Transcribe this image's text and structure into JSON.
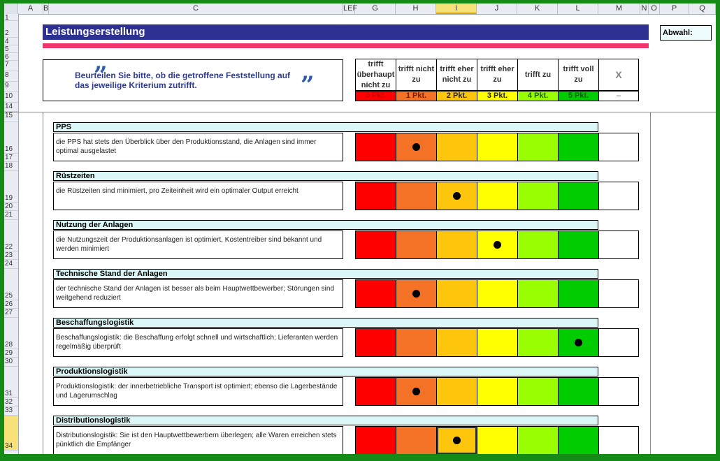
{
  "columns": [
    "A",
    "B",
    "C",
    "LEF",
    "G",
    "H",
    "I",
    "J",
    "K",
    "L",
    "M",
    "N",
    "O",
    "P",
    "Q"
  ],
  "selected_column": "I",
  "rows": [
    "1",
    "2",
    "4",
    "5",
    "6",
    "7",
    "8",
    "9",
    "10",
    "14",
    "15",
    "16",
    "17",
    "18",
    "19",
    "20",
    "21",
    "22",
    "23",
    "24",
    "25",
    "26",
    "27",
    "28",
    "29",
    "30",
    "31",
    "32",
    "33",
    "34"
  ],
  "selected_row": "34",
  "title": "Leistungserstellung",
  "abwahl_label": "Abwahl:",
  "quote_open": "”",
  "quote_close": "”",
  "instruction": "Beurteilen Sie bitte, ob die getroffene Feststellung auf das jeweilige Kriterium zutrifft.",
  "scale": [
    {
      "label": "trifft überhaupt nicht zu",
      "points": "0 Pkt.",
      "color": "#ff0000",
      "text_color": "#cc0000"
    },
    {
      "label": "trifft nicht zu",
      "points": "1 Pkt.",
      "color": "#f47226",
      "text_color": "#7a1c00"
    },
    {
      "label": "trifft eher nicht zu",
      "points": "2 Pkt.",
      "color": "#fdc60c",
      "text_color": "#222222"
    },
    {
      "label": "trifft eher zu",
      "points": "3 Pkt.",
      "color": "#ffff00",
      "text_color": "#222222"
    },
    {
      "label": "trifft zu",
      "points": "4 Pkt.",
      "color": "#99ff00",
      "text_color": "#1f5f00"
    },
    {
      "label": "trifft voll zu",
      "points": "5 Pkt.",
      "color": "#00cc00",
      "text_color": "#0a5a0a"
    }
  ],
  "x_label": "X",
  "x_points": "–",
  "criteria": [
    {
      "title": "PPS",
      "description": "die PPS hat stets den Überblick über den Produktionsstand, die Anlagen sind immer optimal ausgelastet",
      "rating": 1
    },
    {
      "title": "Rüstzeiten",
      "description": "die Rüstzeiten sind minimiert, pro Zeiteinheit wird ein optimaler Output erreicht",
      "rating": 2
    },
    {
      "title": "Nutzung der Anlagen",
      "description": "die Nutzungszeit der Produktionsanlagen ist optimiert, Kostentreiber sind bekannt und werden minimiert",
      "rating": 3
    },
    {
      "title": "Technische Stand der Anlagen",
      "description": "der technische Stand der Anlagen ist besser als beim Hauptwettbewerber; Störungen sind weitgehend reduziert",
      "rating": 1
    },
    {
      "title": "Beschaffungslogistik",
      "description": "Beschaffungslogistik: die Beschaffung erfolgt schnell und wirtschaftlich; Lieferanten werden regelmäßig überprüft",
      "rating": 5
    },
    {
      "title": "Produktionslogistik",
      "description": "Produktionslogistik: der innerbetriebliche Transport ist optimiert; ebenso die Lagerbestände und Lagerumschlag",
      "rating": 1
    },
    {
      "title": "Distributionslogistik",
      "description": "Distributionslogistik: Sie ist den Hauptwettbewerbern überlegen; alle Waren erreichen stets pünktlich die Empfänger",
      "rating": 2
    }
  ]
}
